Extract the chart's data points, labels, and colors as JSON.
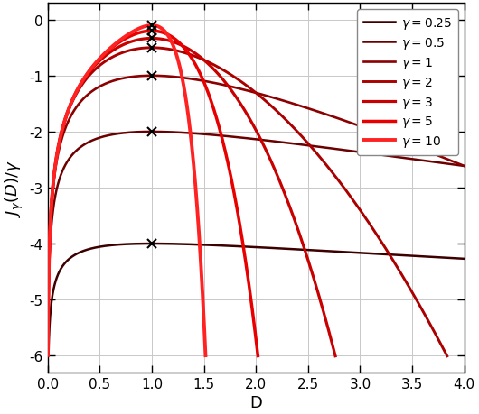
{
  "gammas": [
    0.25,
    0.5,
    1,
    2,
    3,
    5,
    10
  ],
  "gamma_labels": [
    "0.25",
    "0.5",
    "1",
    "2",
    "3",
    "5",
    "10"
  ],
  "colors": [
    "#3d0000",
    "#6b0000",
    "#8b0000",
    "#aa0000",
    "#c80000",
    "#e80000",
    "#ff2222"
  ],
  "linewidths": [
    1.8,
    1.8,
    1.9,
    2.1,
    2.3,
    2.5,
    2.8
  ],
  "D_min": 0.0005,
  "D_max": 4.0,
  "xlim": [
    0,
    4
  ],
  "ylim": [
    -6,
    0.3
  ],
  "xlabel": "D",
  "yticks": [
    0,
    -1,
    -2,
    -3,
    -4,
    -5,
    -6
  ],
  "xticks": [
    0,
    0.5,
    1,
    1.5,
    2,
    2.5,
    3,
    3.5,
    4
  ],
  "legend_loc": "upper right",
  "figsize": [
    5.3,
    4.6
  ],
  "dpi": 100
}
